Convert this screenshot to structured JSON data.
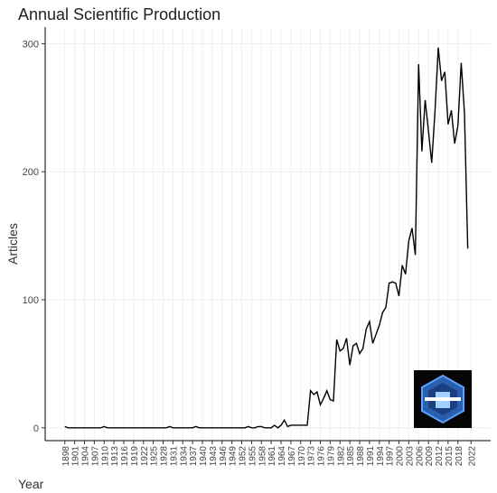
{
  "chart_data": {
    "type": "line",
    "title": "Annual Scientific Production",
    "x_label": "Year",
    "y_label": "Articles",
    "x": [
      1898,
      1899,
      1900,
      1901,
      1902,
      1903,
      1904,
      1905,
      1906,
      1907,
      1908,
      1909,
      1910,
      1911,
      1912,
      1913,
      1914,
      1915,
      1916,
      1917,
      1918,
      1919,
      1920,
      1921,
      1922,
      1923,
      1924,
      1925,
      1926,
      1927,
      1928,
      1929,
      1930,
      1931,
      1932,
      1933,
      1934,
      1935,
      1936,
      1937,
      1938,
      1939,
      1940,
      1941,
      1942,
      1943,
      1944,
      1945,
      1946,
      1947,
      1948,
      1949,
      1950,
      1951,
      1952,
      1953,
      1954,
      1955,
      1956,
      1957,
      1958,
      1959,
      1960,
      1961,
      1962,
      1963,
      1964,
      1965,
      1966,
      1967,
      1968,
      1969,
      1970,
      1971,
      1972,
      1973,
      1974,
      1975,
      1976,
      1977,
      1978,
      1979,
      1980,
      1981,
      1982,
      1983,
      1984,
      1985,
      1986,
      1987,
      1988,
      1989,
      1990,
      1991,
      1992,
      1993,
      1994,
      1995,
      1996,
      1997,
      1998,
      1999,
      2000,
      2001,
      2002,
      2003,
      2004,
      2005,
      2006,
      2007,
      2008,
      2009,
      2010,
      2011,
      2012,
      2013,
      2014,
      2015,
      2016,
      2017,
      2018,
      2019,
      2020,
      2021
    ],
    "values": [
      1,
      0,
      0,
      0,
      0,
      0,
      0,
      0,
      0,
      0,
      0,
      0,
      1,
      0,
      0,
      0,
      0,
      0,
      0,
      0,
      0,
      0,
      0,
      0,
      0,
      0,
      0,
      0,
      0,
      0,
      0,
      0,
      1,
      0,
      0,
      0,
      0,
      0,
      0,
      0,
      1,
      0,
      0,
      0,
      0,
      0,
      0,
      0,
      0,
      0,
      0,
      0,
      0,
      0,
      0,
      0,
      1,
      0,
      0,
      1,
      1,
      0,
      0,
      0,
      2,
      0,
      2,
      6,
      1,
      2,
      2,
      2,
      2,
      2,
      2,
      29,
      26,
      28,
      18,
      23,
      29,
      22,
      21,
      69,
      60,
      62,
      70,
      49,
      64,
      66,
      58,
      62,
      77,
      83,
      66,
      73,
      80,
      90,
      94,
      113,
      114,
      113,
      103,
      127,
      120,
      146,
      156,
      135,
      284,
      216,
      256,
      232,
      207,
      247,
      297,
      271,
      278,
      237,
      248,
      222,
      236,
      285,
      246,
      140
    ],
    "color": "#000000",
    "xlim": [
      1892,
      2028
    ],
    "xticks": [
      1898,
      1901,
      1904,
      1907,
      1910,
      1913,
      1916,
      1919,
      1922,
      1925,
      1928,
      1931,
      1934,
      1937,
      1940,
      1943,
      1946,
      1949,
      1952,
      1955,
      1958,
      1961,
      1964,
      1967,
      1970,
      1973,
      1976,
      1979,
      1982,
      1985,
      1988,
      1991,
      1994,
      1997,
      2000,
      2003,
      2006,
      2009,
      2012,
      2015,
      2018,
      2022
    ],
    "ylim": [
      -10,
      313
    ],
    "yticks": [
      0,
      100,
      200,
      300
    ],
    "grid": true
  }
}
